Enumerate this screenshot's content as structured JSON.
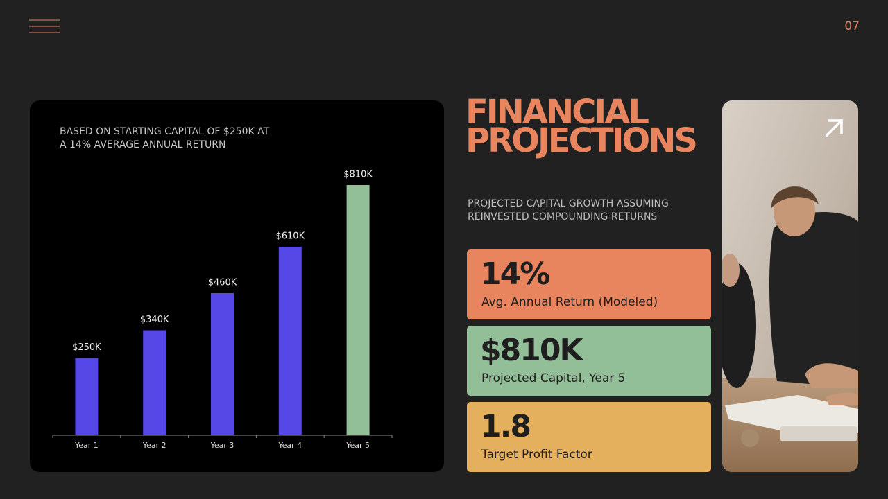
{
  "page_number": "07",
  "heading": [
    "FINANCIAL",
    "PROJECTIONS"
  ],
  "description": [
    "PROJECTED CAPITAL GROWTH ASSUMING",
    "REINVESTED COMPOUNDING RETURNS"
  ],
  "stats": [
    {
      "value": "14%",
      "label": "Avg. Annual Return (Modeled)",
      "color": "#e8845e"
    },
    {
      "value": "$810K",
      "label": "Projected Capital, Year 5",
      "color": "#93bf98"
    },
    {
      "value": "1.8",
      "label": "Target Profit Factor",
      "color": "#e5b05d"
    }
  ],
  "chart_data": {
    "type": "bar",
    "subtitle": [
      "BASED ON STARTING CAPITAL OF $250K AT",
      "A 14% AVERAGE ANNUAL RETURN"
    ],
    "categories": [
      "Year 1",
      "Year 2",
      "Year 3",
      "Year 4",
      "Year 5"
    ],
    "values": [
      250,
      340,
      460,
      610,
      810
    ],
    "value_labels": [
      "$250K",
      "$340K",
      "$460K",
      "$610K",
      "$810K"
    ],
    "colors": [
      "#5548e6",
      "#5548e6",
      "#5548e6",
      "#5548e6",
      "#93bf98"
    ]
  }
}
